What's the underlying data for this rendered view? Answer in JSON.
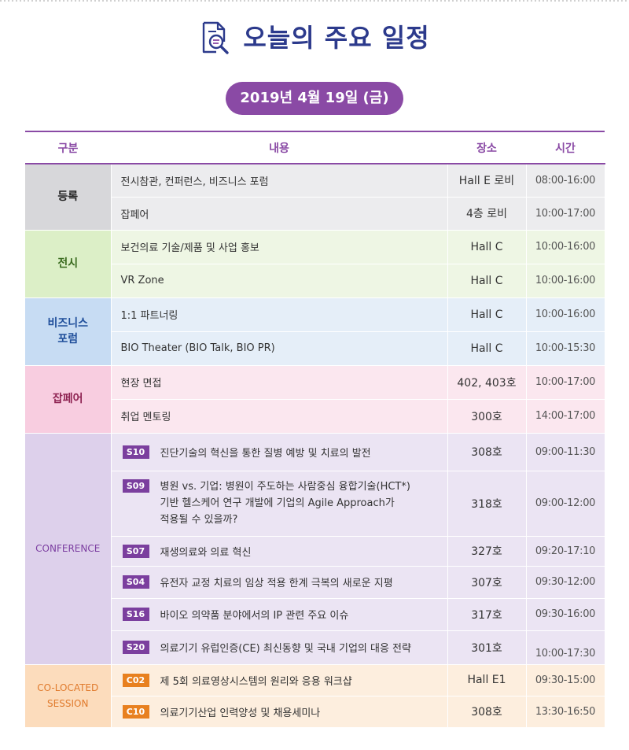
{
  "title": "오늘의 주요 일정",
  "title_icon": "document-search-icon",
  "date": "2019년 4월 19일 (금)",
  "colors": {
    "title": "#2c3a8c",
    "accent": "#8a4aa5",
    "code_purple": "#7b3f9e",
    "code_orange": "#e8801f"
  },
  "headers": {
    "category": "구분",
    "content": "내용",
    "place": "장소",
    "time": "시간"
  },
  "groups": [
    {
      "category": "등록",
      "rows": [
        {
          "content": "전시참관, 컨퍼런스, 비즈니스 포럼",
          "place": "Hall E 로비",
          "time": "08:00-16:00"
        },
        {
          "content": "잡페어",
          "place": "4층 로비",
          "time": "10:00-17:00"
        }
      ]
    },
    {
      "category": "전시",
      "rows": [
        {
          "content": "보건의료 기술/제품 및 사업 홍보",
          "place": "Hall C",
          "time": "10:00-16:00"
        },
        {
          "content": "VR Zone",
          "place": "Hall C",
          "time": "10:00-16:00"
        }
      ]
    },
    {
      "category_lines": [
        "비즈니스",
        "포럼"
      ],
      "rows": [
        {
          "content": "1:1 파트너링",
          "place": "Hall C",
          "time": "10:00-16:00"
        },
        {
          "content": "BIO Theater (BIO Talk, BIO PR)",
          "place": "Hall C",
          "time": "10:00-15:30"
        }
      ]
    },
    {
      "category": "잡페어",
      "rows": [
        {
          "content": "현장 면접",
          "place": "402, 403호",
          "time": "10:00-17:00"
        },
        {
          "content": "취업 멘토링",
          "place": "300호",
          "time": "14:00-17:00"
        }
      ]
    },
    {
      "category": "CONFERENCE",
      "rows": [
        {
          "code": "S10",
          "content": "진단기술의 혁신을 통한 질병 예방 및 치료의 발전",
          "place": "308호",
          "time": "09:00-11:30"
        },
        {
          "code": "S09",
          "content_lines": [
            "병원 vs. 기업: 병원이 주도하는 사람중심 융합기술(HCT*)",
            "기반 헬스케어 연구 개발에 기업의 Agile Approach가",
            "적용될 수 있을까?"
          ],
          "place": "318호",
          "time": "09:00-12:00"
        },
        {
          "code": "S07",
          "content": "재생의료와 의료 혁신",
          "place": "327호",
          "time": "09:20-17:10"
        },
        {
          "code": "S04",
          "content": "유전자 교정 치료의 임상 적용 한계 극복의 새로운 지평",
          "place": "307호",
          "time": "09:30-12:00"
        },
        {
          "code": "S16",
          "content": "바이오 의약품 분야에서의 IP 관련 주요 이슈",
          "place": "317호",
          "time": "09:30-16:00"
        },
        {
          "code": "S20",
          "content": "의료기기 유럽인증(CE) 최신동향 및 국내 기업의 대응 전략",
          "place": "301호",
          "time": "10:00-17:30"
        }
      ]
    },
    {
      "category_lines": [
        "CO-LOCATED",
        "SESSION"
      ],
      "rows": [
        {
          "code": "C02",
          "content": "제 5회 의료영상시스템의 원리와 응용 워크샵",
          "place": "Hall E1",
          "time": "09:30-15:00"
        },
        {
          "code": "C10",
          "content": "의료기기산업 인력양성 및 채용세미나",
          "place": "308호",
          "time": "13:30-16:50"
        }
      ]
    }
  ]
}
